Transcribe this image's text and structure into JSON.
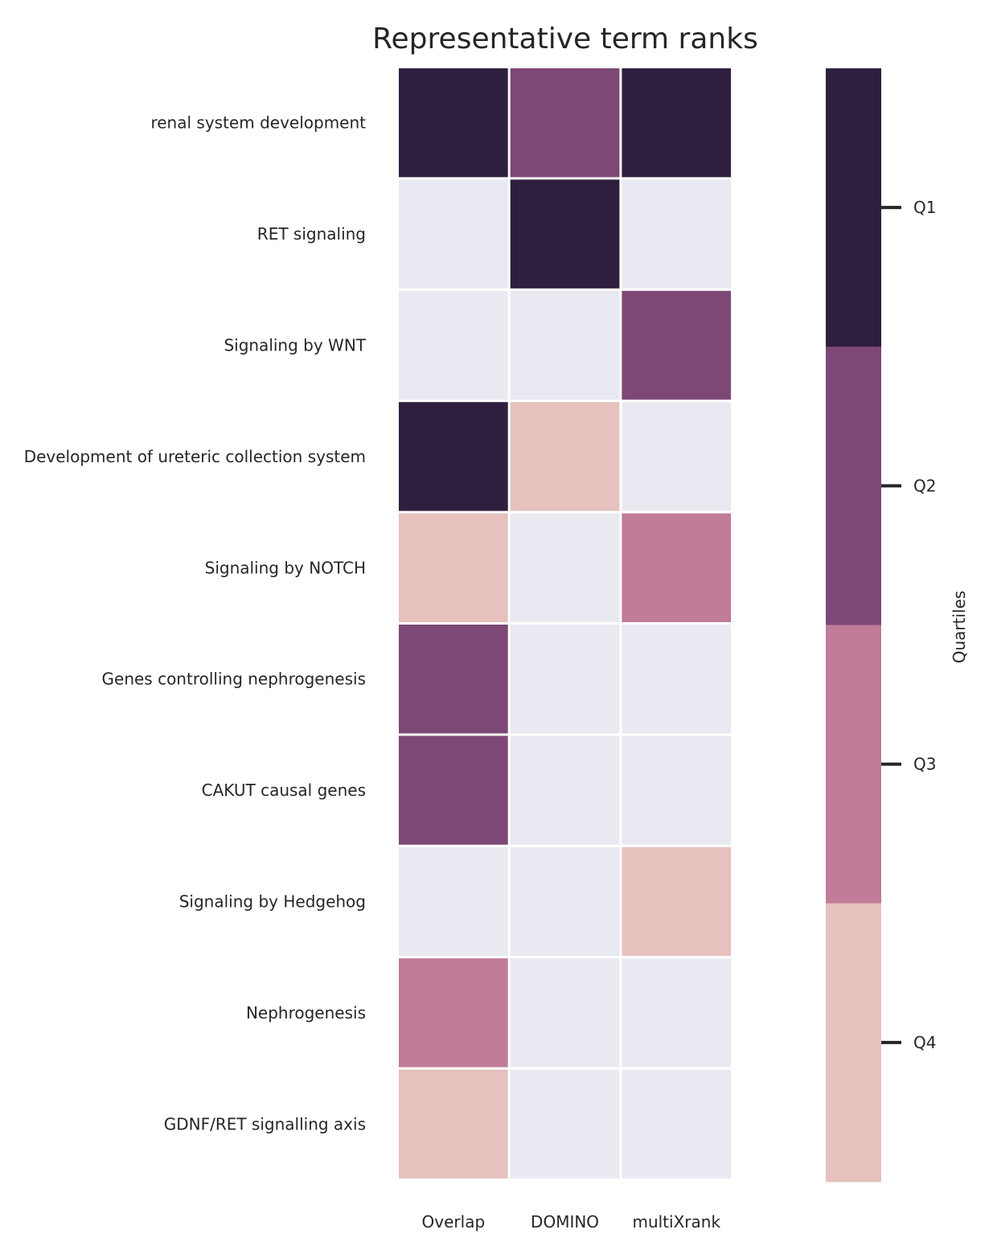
{
  "chart_data": {
    "type": "heatmap",
    "title": "Representative term ranks",
    "columns": [
      "Overlap",
      "DOMINO",
      "multiXrank"
    ],
    "rows": [
      "renal system development",
      "RET signaling",
      "Signaling by WNT",
      "Development of ureteric collection system",
      "Signaling by NOTCH",
      "Genes controlling nephrogenesis",
      "CAKUT causal genes",
      "Signaling by Hedgehog",
      "Nephrogenesis",
      "GDNF/RET signalling axis"
    ],
    "values": [
      [
        1,
        2,
        1
      ],
      [
        0,
        1,
        0
      ],
      [
        0,
        0,
        2
      ],
      [
        1,
        4,
        0
      ],
      [
        4,
        0,
        3
      ],
      [
        2,
        0,
        0
      ],
      [
        2,
        0,
        0
      ],
      [
        0,
        0,
        4
      ],
      [
        3,
        0,
        0
      ],
      [
        4,
        0,
        0
      ]
    ],
    "missing_value": 0,
    "colorbar": {
      "label": "Quartiles",
      "ticks": [
        "Q1",
        "Q2",
        "Q3",
        "Q4"
      ],
      "colors": [
        "#2e1f3e",
        "#7d4876",
        "#c07c99",
        "#e6c1bd"
      ],
      "missing_color": "#e9eaf1"
    }
  }
}
